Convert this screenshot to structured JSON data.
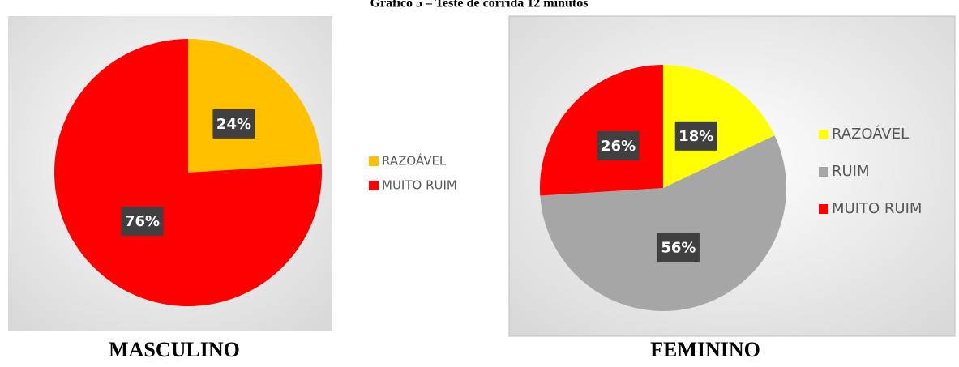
{
  "title": "Gráfico 5 – Teste de corrida 12 minutos",
  "chart_data": [
    {
      "type": "pie",
      "caption": "MASCULINO",
      "categories": [
        "RAZOÁVEL",
        "MUITO RUIM"
      ],
      "values": [
        24,
        76
      ],
      "value_labels": [
        "24%",
        "76%"
      ],
      "colors": [
        "#ffc000",
        "#ff0000"
      ]
    },
    {
      "type": "pie",
      "caption": "FEMININO",
      "categories": [
        "RAZOÁVEL",
        "RUIM",
        "MUITO RUIM"
      ],
      "values": [
        18,
        56,
        26
      ],
      "value_labels": [
        "18%",
        "56%",
        "26%"
      ],
      "colors": [
        "#ffff00",
        "#a6a6a6",
        "#ff0000"
      ]
    }
  ]
}
